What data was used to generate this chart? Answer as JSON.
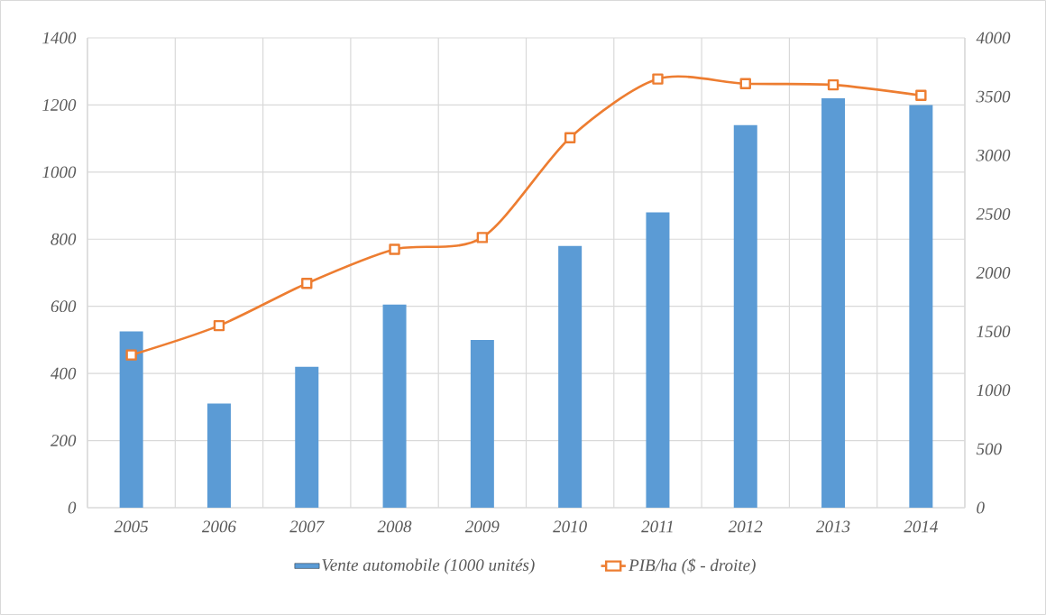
{
  "chart_data": {
    "type": "bar",
    "categories": [
      "2005",
      "2006",
      "2007",
      "2008",
      "2009",
      "2010",
      "2011",
      "2012",
      "2013",
      "2014"
    ],
    "series": [
      {
        "name": "Vente automobile (1000 unités)",
        "color": "#5b9bd5",
        "values": [
          525,
          310,
          420,
          605,
          500,
          780,
          880,
          1140,
          1220,
          1200
        ]
      },
      {
        "name": "PIB/ha ($ - droite)",
        "type": "line",
        "axis": "y2",
        "color": "#ed7d31",
        "values": [
          1300,
          1550,
          1910,
          2200,
          2300,
          3150,
          3650,
          3610,
          3600,
          3510
        ]
      }
    ],
    "ylim": [
      0,
      1400
    ],
    "yticks": [
      0,
      200,
      400,
      600,
      800,
      1000,
      1200,
      1400
    ],
    "y2lim": [
      0,
      4000
    ],
    "y2ticks": [
      0,
      500,
      1000,
      1500,
      2000,
      2500,
      3000,
      3500,
      4000
    ],
    "grid": true,
    "legend": "bottom",
    "marker": "square"
  }
}
